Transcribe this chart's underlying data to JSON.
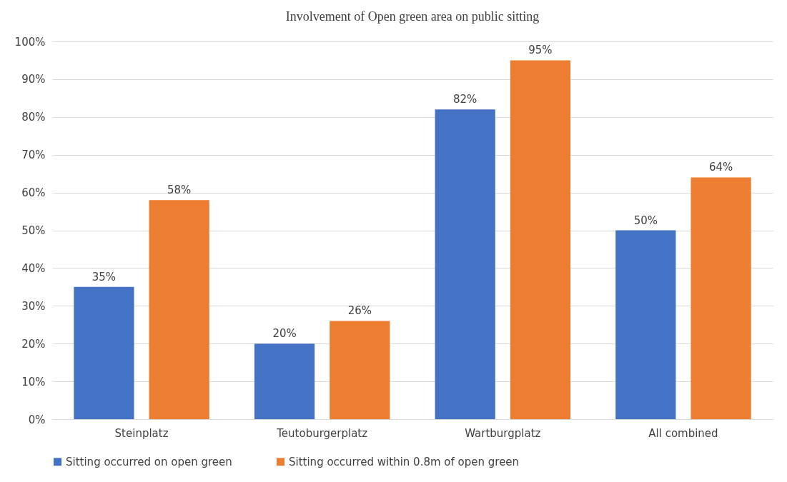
{
  "chart_data": {
    "type": "bar",
    "title": "Involvement of Open green area on public sitting",
    "categories": [
      "Steinplatz",
      "Teutoburgerplatz",
      "Wartburgplatz",
      "All combined"
    ],
    "series": [
      {
        "name": "Sitting occurred on open green",
        "color": "#4472c4",
        "values": [
          35,
          20,
          82,
          50
        ],
        "value_labels": [
          "35%",
          "20%",
          "82%",
          "50%"
        ]
      },
      {
        "name": "Sitting occurred within 0.8m of open green",
        "color": "#ed7d31",
        "values": [
          58,
          26,
          95,
          64
        ],
        "value_labels": [
          "58%",
          "26%",
          "95%",
          "64%"
        ]
      }
    ],
    "ylim": [
      0,
      100
    ],
    "yticks": [
      {
        "value": 0,
        "label": "0%"
      },
      {
        "value": 10,
        "label": "10%"
      },
      {
        "value": 20,
        "label": "20%"
      },
      {
        "value": 30,
        "label": "30%"
      },
      {
        "value": 40,
        "label": "40%"
      },
      {
        "value": 50,
        "label": "50%"
      },
      {
        "value": 60,
        "label": "60%"
      },
      {
        "value": 70,
        "label": "70%"
      },
      {
        "value": 80,
        "label": "80%"
      },
      {
        "value": 90,
        "label": "90%"
      },
      {
        "value": 100,
        "label": "100%"
      }
    ],
    "grid": "y",
    "legend": "bottom"
  }
}
